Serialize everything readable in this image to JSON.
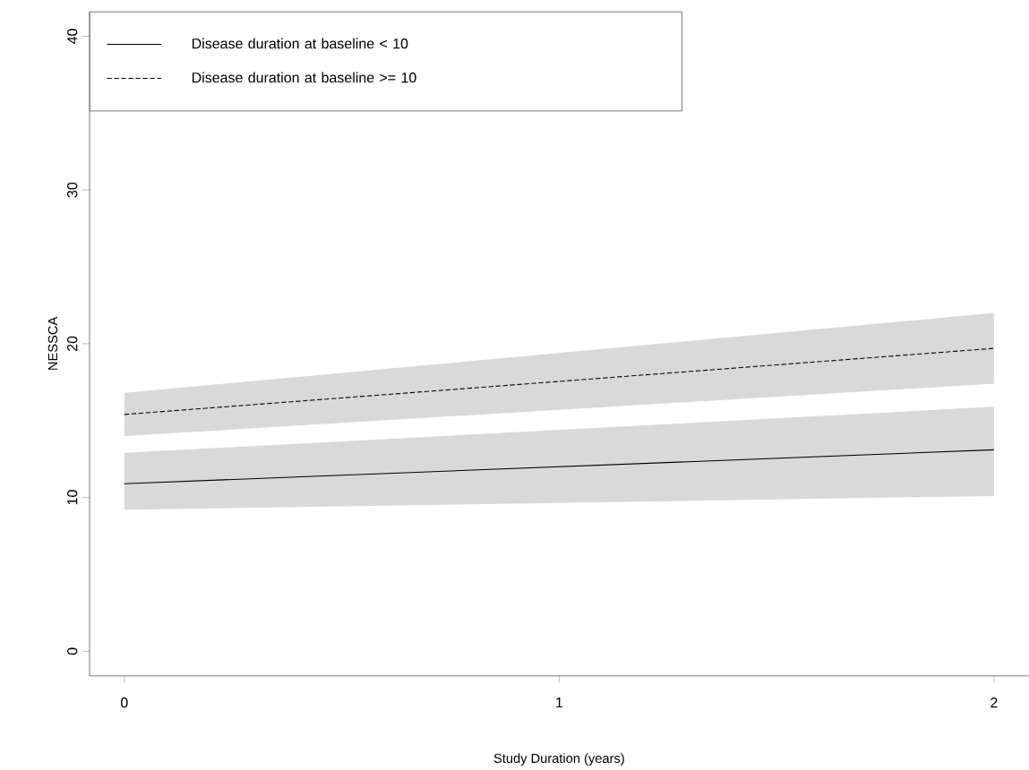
{
  "chart_data": {
    "type": "line",
    "xlabel": "Study Duration (years)",
    "ylabel": "NESSCA",
    "x": [
      0,
      2
    ],
    "series": [
      {
        "name": "Disease duration at baseline < 10",
        "color": "#000000",
        "line_style": "solid",
        "values": [
          10.9,
          13.1
        ],
        "lower": [
          9.2,
          10.1
        ],
        "upper": [
          12.9,
          15.9
        ]
      },
      {
        "name": "Disease duration at baseline >= 10",
        "color": "#000000",
        "line_style": "dashed",
        "values": [
          15.4,
          19.7
        ],
        "lower": [
          14.0,
          17.4
        ],
        "upper": [
          16.8,
          22.0
        ]
      }
    ],
    "xlim": [
      -0.08,
      2.08
    ],
    "ylim": [
      -1.6,
      41.6
    ],
    "xticks": [
      0,
      1,
      2
    ],
    "yticks": [
      0,
      10,
      20,
      30,
      40
    ],
    "legend": "top left"
  }
}
